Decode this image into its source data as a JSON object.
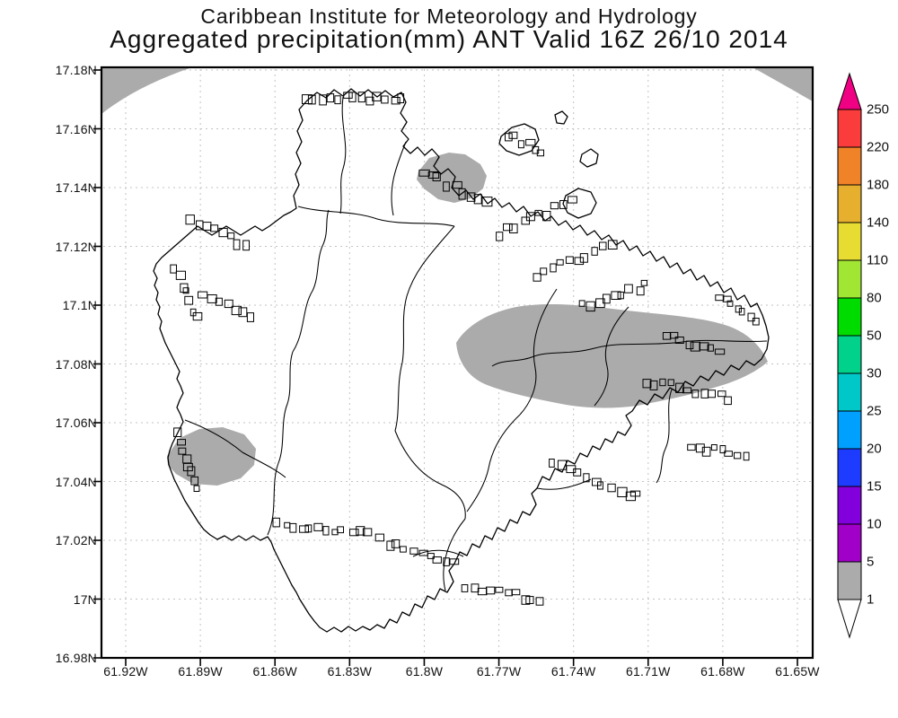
{
  "title": {
    "line1": "Caribbean Institute for Meteorology and Hydrology",
    "line2": "Aggregated precipitation(mm) ANT Valid 16Z 26/10 2014"
  },
  "axes": {
    "lat_labels": [
      "17.18N",
      "17.16N",
      "17.14N",
      "17.12N",
      "17.1N",
      "17.08N",
      "17.06N",
      "17.04N",
      "17.02N",
      "17N",
      "16.98N"
    ],
    "lon_labels": [
      "61.92W",
      "61.89W",
      "61.86W",
      "61.83W",
      "61.8W",
      "61.77W",
      "61.74W",
      "61.71W",
      "61.68W",
      "61.65W"
    ]
  },
  "colorbar": {
    "boundary_labels_bottom_to_top": [
      "1",
      "5",
      "10",
      "15",
      "20",
      "25",
      "30",
      "50",
      "80",
      "110",
      "140",
      "180",
      "220",
      "250"
    ],
    "segment_colors_bottom_to_top": [
      "#ababab",
      "#a000c8",
      "#8200dc",
      "#1e3cff",
      "#00a0ff",
      "#00c8c8",
      "#00d28c",
      "#00dc00",
      "#a0e632",
      "#e6dc32",
      "#e6af2d",
      "#f08228",
      "#fa3c3c"
    ],
    "above_max_color": "#f00082",
    "below_min_color": "#ffffff"
  },
  "map": {
    "shade_color": "#ababab",
    "shaded_value_range_mm": "1-5",
    "shaded_regions": [
      "northwest corner of domain",
      "northeast corner of domain",
      "north coast near 61.80W / 17.14N",
      "large east-central band near 61.72W / 17.08N",
      "southwest near 61.89W / 17.04N"
    ]
  }
}
